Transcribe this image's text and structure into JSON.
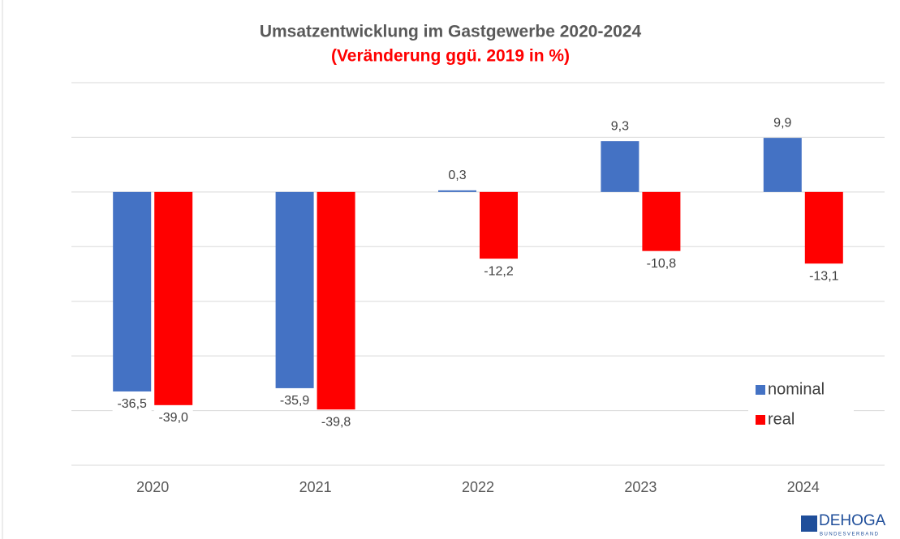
{
  "chart_data": {
    "type": "bar",
    "title": "Umsatzentwicklung im Gastgewerbe 2020-2024",
    "subtitle": "(Veränderung ggü. 2019 in %)",
    "categories": [
      "2020",
      "2021",
      "2022",
      "2023",
      "2024"
    ],
    "series": [
      {
        "name": "nominal",
        "color": "#4472c4",
        "values": [
          -36.5,
          -35.9,
          0.3,
          9.3,
          9.9
        ],
        "value_labels": [
          "-36,5",
          "-35,9",
          "0,3",
          "9,3",
          "9,9"
        ]
      },
      {
        "name": "real",
        "color": "#ff0000",
        "values": [
          -39.0,
          -39.8,
          -12.2,
          -10.8,
          -13.1
        ],
        "value_labels": [
          "-39,0",
          "-39,8",
          "-12,2",
          "-10,8",
          "-13,1"
        ]
      }
    ],
    "ylim": [
      -50,
      20
    ],
    "yticks": [
      -50,
      -40,
      -30,
      -20,
      -10,
      0,
      10,
      20
    ],
    "grid": true,
    "legend": "lower right",
    "logo": "DEHOGA",
    "logo_sub": "BUNDESVERBAND"
  }
}
